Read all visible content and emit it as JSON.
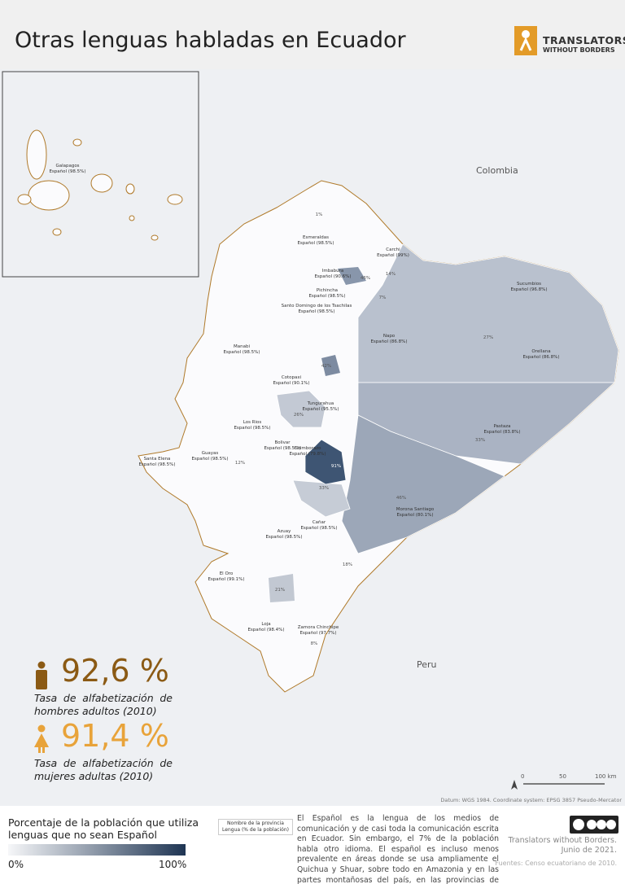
{
  "header": {
    "title": "Otras lenguas habladas en Ecuador",
    "logo": [
      "TRANSLATORS",
      "WITHOUT BORDERS"
    ]
  },
  "map": {
    "countries": [
      "Colombia",
      "Peru"
    ],
    "provinces": [
      {
        "name": "Galapagos",
        "label": "Español (98.5%)"
      },
      {
        "name": "Esmeraldas",
        "label": "Español (98.5%)"
      },
      {
        "name": "Carchi",
        "label": "Español (99%)"
      },
      {
        "name": "Imbabura",
        "label": "Español (90.6%)"
      },
      {
        "name": "Sucumbios",
        "label": "Español (96.8%)"
      },
      {
        "name": "Pichincha",
        "label": "Español (98.5%)"
      },
      {
        "name": "Santo Domingo de los Tsachilas",
        "label": "Español (98.5%)"
      },
      {
        "name": "Manabi",
        "label": "Español (98.5%)"
      },
      {
        "name": "Napo",
        "label": "Español (86.8%)"
      },
      {
        "name": "Orellana",
        "label": "Español (86.8%)"
      },
      {
        "name": "Cotopaxi",
        "label": "Español (90.1%)"
      },
      {
        "name": "Tungurahua",
        "label": "Español (95.5%)"
      },
      {
        "name": "Los Rios",
        "label": "Español (98.5%)"
      },
      {
        "name": "Pastaza",
        "label": "Español (83.8%)"
      },
      {
        "name": "Bolivar",
        "label": "Español (98.5%)"
      },
      {
        "name": "Chimborazo",
        "label": "Español (79.8%)"
      },
      {
        "name": "Santa Elena",
        "label": "Español (98.5%)"
      },
      {
        "name": "Guayas",
        "label": "Español (98.5%)"
      },
      {
        "name": "Morona Santiago",
        "label": "Español (80.1%)"
      },
      {
        "name": "Cañar",
        "label": "Español (98.5%)"
      },
      {
        "name": "Azuay",
        "label": "Español (98.5%)"
      },
      {
        "name": "El Oro",
        "label": "Español (99.1%)"
      },
      {
        "name": "Loja",
        "label": "Español (98.4%)"
      },
      {
        "name": "Zamora Chinchipe",
        "label": "Español (97.7%)"
      }
    ],
    "canton_labels": [
      "1%",
      "46%",
      "27%",
      "42%",
      "26%",
      "33%",
      "91%",
      "33%",
      "46%",
      "12%",
      "18%",
      "21%",
      "8%",
      "14%",
      "7%"
    ],
    "scale": [
      "0",
      "50",
      "100 km"
    ],
    "datum": "Datum: WGS 1984. Coordinate system: EPSG 3857 Pseudo-Mercator"
  },
  "stats": [
    {
      "value": "92,6 %",
      "caption": "Tasa de alfabetización de hombres adultos (2010)"
    },
    {
      "value": "91,4 %",
      "caption": "Tasa de alfabetización de mujeres adultas (2010)"
    }
  ],
  "legend": {
    "title": "Porcentaje de la población que utiliza lenguas que no sean Español",
    "min": "0%",
    "max": "100%",
    "key": [
      "Nombre de la provincia",
      "Lengua (% de la población)"
    ]
  },
  "description": "El Español es la lengua de los medios de comunicación y de casi toda la comunicación escrita en Ecuador. Sin embargo, el 7% de la población habla otro idioma. El español es incluso menos prevalente en áreas donde se usa ampliamente el Quichua y Shuar, sobre todo en Amazonia y en las partes montañosas del país, en las provincias de Chimborazo, Morona Santiago y Pastaza.",
  "credits": [
    "Translators without Borders.",
    "Junio de 2021."
  ],
  "source": "Fuentes: Censo ecuatoriano de 2010."
}
